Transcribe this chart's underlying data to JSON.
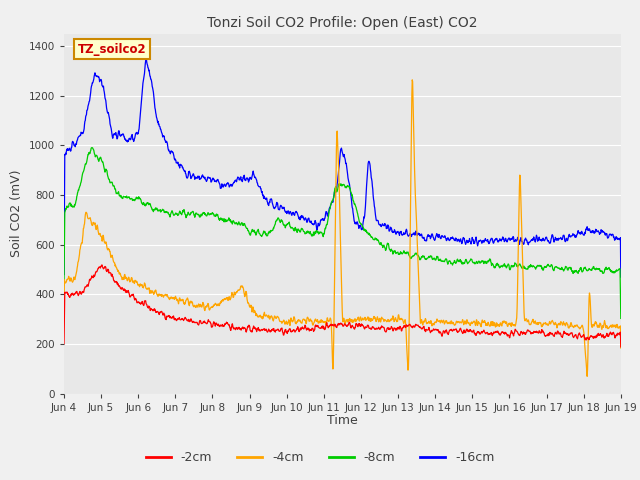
{
  "title": "Tonzi Soil CO2 Profile: Open (East) CO2",
  "ylabel": "Soil CO2 (mV)",
  "xlabel": "Time",
  "ylim": [
    0,
    1450
  ],
  "yticks": [
    0,
    200,
    400,
    600,
    800,
    1000,
    1200,
    1400
  ],
  "x_labels": [
    "Jun 4",
    "Jun 5",
    "Jun 6",
    "Jun 7",
    "Jun 8",
    "Jun 9",
    "Jun 10",
    "Jun 11",
    "Jun 12",
    "Jun 13",
    "Jun 14",
    "Jun 15",
    "Jun 16",
    "Jun 17",
    "Jun 18",
    "Jun 19"
  ],
  "legend_label": "TZ_soilco2",
  "series_labels": [
    "-2cm",
    "-4cm",
    "-8cm",
    "-16cm"
  ],
  "series_colors": [
    "#ff0000",
    "#ffa500",
    "#00cc00",
    "#0000ff"
  ],
  "bg_color": "#f0f0f0",
  "plot_bg_color": "#e8e8e8",
  "title_color": "#404040",
  "label_color": "#404040",
  "grid_color": "#ffffff",
  "figsize": [
    6.4,
    4.8
  ],
  "dpi": 100
}
